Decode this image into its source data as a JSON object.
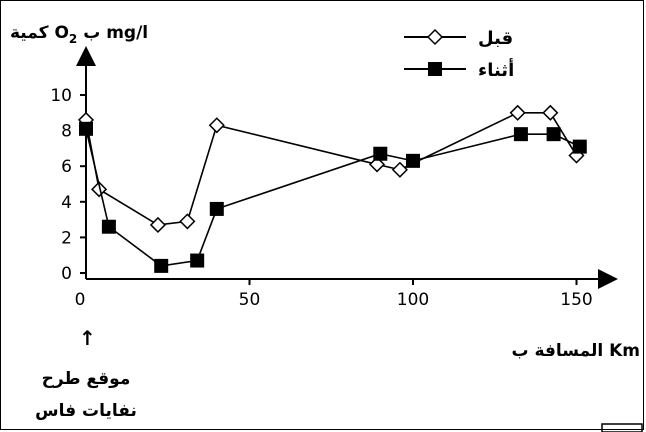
{
  "chart_data": {
    "type": "line",
    "ylabel": {
      "prefix": "كمية O",
      "sub": "2",
      "suffix": " ب mg/l"
    },
    "xlabel": "المسافة ب Km",
    "xlim": [
      0,
      160
    ],
    "ylim": [
      0,
      11
    ],
    "xticks": [
      0,
      50,
      100,
      150
    ],
    "yticks": [
      0,
      2,
      4,
      6,
      8,
      10
    ],
    "grid": false,
    "legend_position": "top-right",
    "series": [
      {
        "name": "قبل",
        "marker": "diamond-open",
        "x": [
          0,
          4,
          22,
          31,
          40,
          89,
          96,
          132,
          142,
          150
        ],
        "y": [
          8.6,
          4.7,
          2.7,
          2.9,
          8.3,
          6.1,
          5.8,
          9.0,
          9.0,
          6.6
        ]
      },
      {
        "name": "أثناء",
        "marker": "square-filled",
        "x": [
          0,
          7,
          23,
          34,
          40,
          90,
          100,
          133,
          143,
          151
        ],
        "y": [
          8.1,
          2.6,
          0.4,
          0.7,
          3.6,
          6.7,
          6.3,
          7.8,
          7.8,
          7.1
        ]
      }
    ],
    "annotation": {
      "arrow": "↑",
      "lines": [
        "موقع طرح",
        "نفايات فاس"
      ]
    }
  }
}
